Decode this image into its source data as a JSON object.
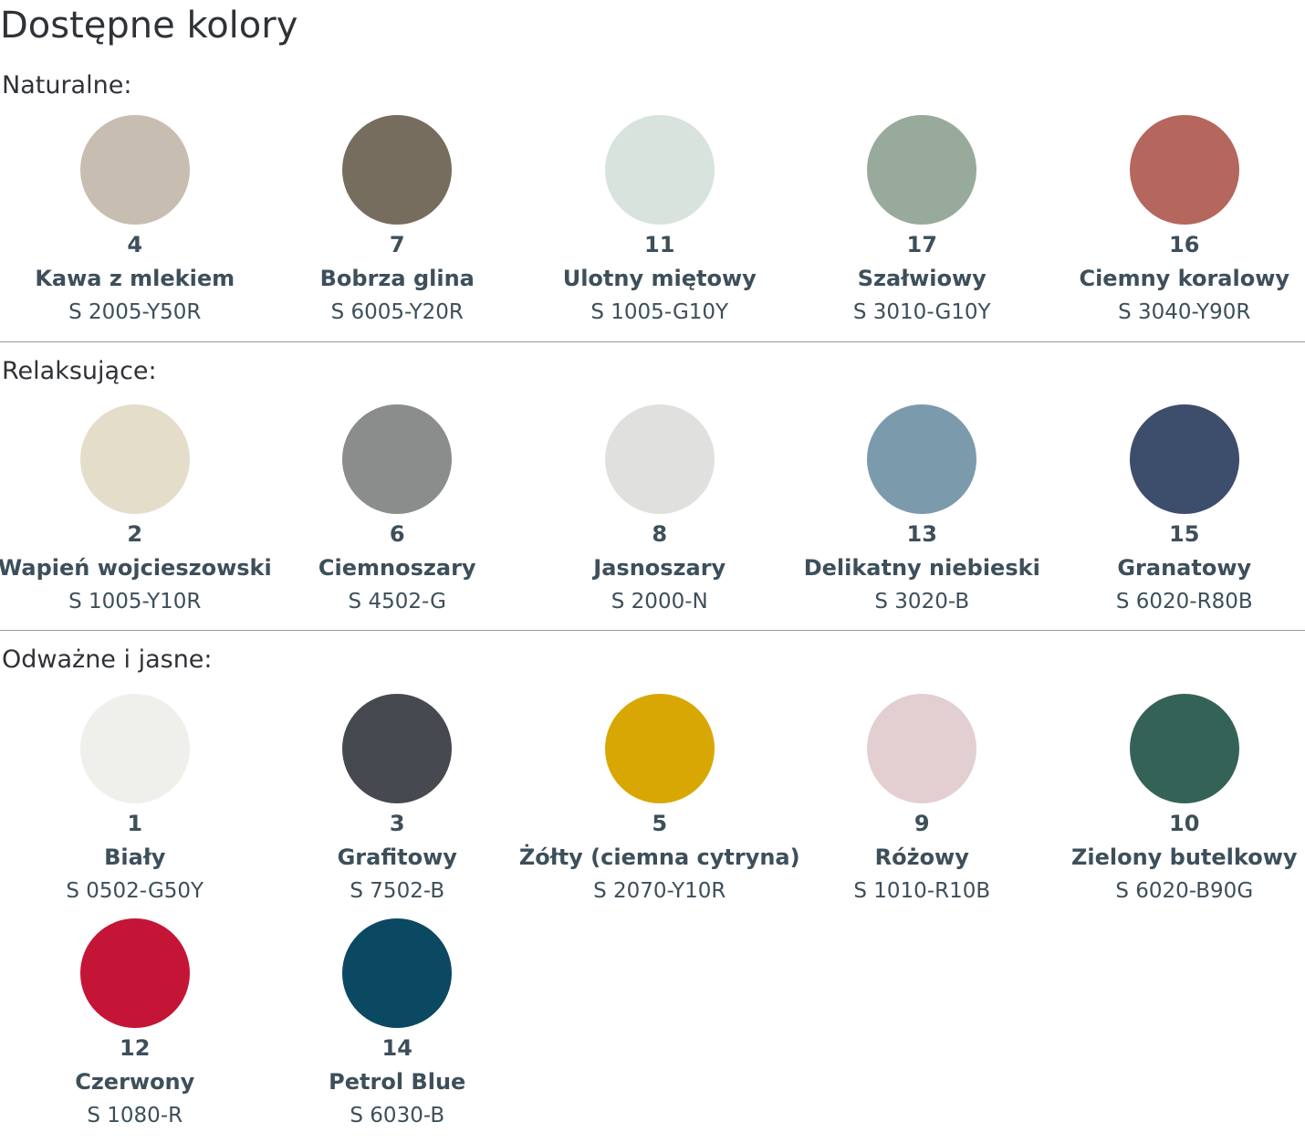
{
  "title": "Dostępne kolory",
  "sections": [
    {
      "title": "Naturalne:",
      "colors": [
        {
          "number": "4",
          "name": "Kawa z mlekiem",
          "code": "S 2005-Y50R",
          "hex": "#c8bdb1"
        },
        {
          "number": "7",
          "name": "Bobrza glina",
          "code": "S 6005-Y20R",
          "hex": "#776d5e"
        },
        {
          "number": "11",
          "name": "Ulotny miętowy",
          "code": "S 1005-G10Y",
          "hex": "#d8e3dd"
        },
        {
          "number": "17",
          "name": "Szałwiowy",
          "code": "S 3010-G10Y",
          "hex": "#98aa9b"
        },
        {
          "number": "16",
          "name": "Ciemny koralowy",
          "code": "S 3040-Y90R",
          "hex": "#b5665d"
        }
      ]
    },
    {
      "title": "Relaksujące:",
      "colors": [
        {
          "number": "2",
          "name": "Wapień wojcieszowski",
          "code": "S 1005-Y10R",
          "hex": "#e4ddca"
        },
        {
          "number": "6",
          "name": "Ciemnoszary",
          "code": "S 4502-G",
          "hex": "#8a8d8c"
        },
        {
          "number": "8",
          "name": "Jasnoszary",
          "code": "S 2000-N",
          "hex": "#e0e0df"
        },
        {
          "number": "13",
          "name": "Delikatny niebieski",
          "code": "S 3020-B",
          "hex": "#7b9bad"
        },
        {
          "number": "15",
          "name": "Granatowy",
          "code": "S 6020-R80B",
          "hex": "#3d4d6c"
        }
      ]
    },
    {
      "title": "Odważne i jasne:",
      "colors": [
        {
          "number": "1",
          "name": "Biały",
          "code": "S 0502-G50Y",
          "hex": "#eff0eb"
        },
        {
          "number": "3",
          "name": "Grafitowy",
          "code": "S 7502-B",
          "hex": "#474950"
        },
        {
          "number": "5",
          "name": "Żółty (ciemna cytryna)",
          "code": "S 2070-Y10R",
          "hex": "#d9a703"
        },
        {
          "number": "9",
          "name": "Różowy",
          "code": "S 1010-R10B",
          "hex": "#e3cfd2"
        },
        {
          "number": "10",
          "name": "Zielony butelkowy",
          "code": "S 6020-B90G",
          "hex": "#356257"
        },
        {
          "number": "12",
          "name": "Czerwony",
          "code": "S 1080-R",
          "hex": "#c51536"
        },
        {
          "number": "14",
          "name": "Petrol Blue",
          "code": "S 6030-B",
          "hex": "#0a4961"
        }
      ]
    }
  ]
}
